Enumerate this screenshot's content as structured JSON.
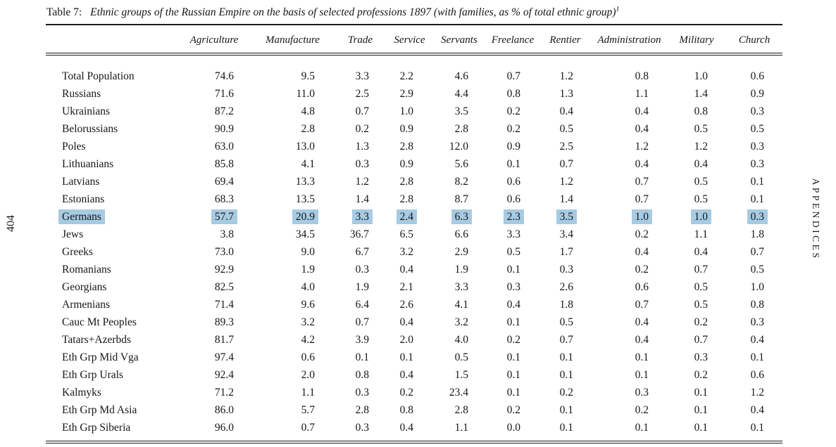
{
  "page": {
    "left_margin_text": "404",
    "right_margin_text": "APPENDICES"
  },
  "table": {
    "label": "Table 7:",
    "title": "Ethnic groups of the Russian Empire on the basis of selected professions 1897 (with families, as % of total ethnic group)",
    "footnote_marker": "1",
    "highlight_color": "#a6cbe3",
    "highlighted_row": "Germans",
    "columns": [
      "Agriculture",
      "Manufacture",
      "Trade",
      "Service",
      "Servants",
      "Freelance",
      "Rentier",
      "Administration",
      "Military",
      "Church"
    ],
    "rows": [
      {
        "group": "Total Population",
        "values": [
          "74.6",
          "9.5",
          "3.3",
          "2.2",
          "4.6",
          "0.7",
          "1.2",
          "0.8",
          "1.0",
          "0.6"
        ]
      },
      {
        "group": "Russians",
        "values": [
          "71.6",
          "11.0",
          "2.5",
          "2.9",
          "4.4",
          "0.8",
          "1.3",
          "1.1",
          "1.4",
          "0.9"
        ]
      },
      {
        "group": "Ukrainians",
        "values": [
          "87.2",
          "4.8",
          "0.7",
          "1.0",
          "3.5",
          "0.2",
          "0.4",
          "0.4",
          "0.8",
          "0.3"
        ]
      },
      {
        "group": "Belorussians",
        "values": [
          "90.9",
          "2.8",
          "0.2",
          "0.9",
          "2.8",
          "0.2",
          "0.5",
          "0.4",
          "0.5",
          "0.5"
        ]
      },
      {
        "group": "Poles",
        "values": [
          "63.0",
          "13.0",
          "1.3",
          "2.8",
          "12.0",
          "0.9",
          "2.5",
          "1.2",
          "1.2",
          "0.3"
        ]
      },
      {
        "group": "Lithuanians",
        "values": [
          "85.8",
          "4.1",
          "0.3",
          "0.9",
          "5.6",
          "0.1",
          "0.7",
          "0.4",
          "0.4",
          "0.3"
        ]
      },
      {
        "group": "Latvians",
        "values": [
          "69.4",
          "13.3",
          "1.2",
          "2.8",
          "8.2",
          "0.6",
          "1.2",
          "0.7",
          "0.5",
          "0.1"
        ]
      },
      {
        "group": "Estonians",
        "values": [
          "68.3",
          "13.5",
          "1.4",
          "2.8",
          "8.7",
          "0.6",
          "1.4",
          "0.7",
          "0.5",
          "0.1"
        ]
      },
      {
        "group": "Germans",
        "values": [
          "57.7",
          "20.9",
          "3.3",
          "2.4",
          "6.3",
          "2.3",
          "3.5",
          "1.0",
          "1.0",
          "0.3"
        ]
      },
      {
        "group": "Jews",
        "values": [
          "3.8",
          "34.5",
          "36.7",
          "6.5",
          "6.6",
          "3.3",
          "3.4",
          "0.2",
          "1.1",
          "1.8"
        ]
      },
      {
        "group": "Greeks",
        "values": [
          "73.0",
          "9.0",
          "6.7",
          "3.2",
          "2.9",
          "0.5",
          "1.7",
          "0.4",
          "0.4",
          "0.7"
        ]
      },
      {
        "group": "Romanians",
        "values": [
          "92.9",
          "1.9",
          "0.3",
          "0.4",
          "1.9",
          "0.1",
          "0.3",
          "0.2",
          "0.7",
          "0.5"
        ]
      },
      {
        "group": "Georgians",
        "values": [
          "82.5",
          "4.0",
          "1.9",
          "2.1",
          "3.3",
          "0.3",
          "2.6",
          "0.6",
          "0.5",
          "1.0"
        ]
      },
      {
        "group": "Armenians",
        "values": [
          "71.4",
          "9.6",
          "6.4",
          "2.6",
          "4.1",
          "0.4",
          "1.8",
          "0.7",
          "0.5",
          "0.8"
        ]
      },
      {
        "group": "Cauc Mt Peoples",
        "values": [
          "89.3",
          "3.2",
          "0.7",
          "0.4",
          "3.2",
          "0.1",
          "0.5",
          "0.4",
          "0.2",
          "0.3"
        ]
      },
      {
        "group": "Tatars+Azerbds",
        "values": [
          "81.7",
          "4.2",
          "3.9",
          "2.0",
          "4.0",
          "0.2",
          "0.7",
          "0.4",
          "0.7",
          "0.4"
        ]
      },
      {
        "group": "Eth Grp Mid Vga",
        "values": [
          "97.4",
          "0.6",
          "0.1",
          "0.1",
          "0.5",
          "0.1",
          "0.1",
          "0.1",
          "0.3",
          "0.1"
        ]
      },
      {
        "group": "Eth Grp Urals",
        "values": [
          "92.4",
          "2.0",
          "0.8",
          "0.4",
          "1.5",
          "0.1",
          "0.1",
          "0.1",
          "0.2",
          "0.6"
        ]
      },
      {
        "group": "Kalmyks",
        "values": [
          "71.2",
          "1.1",
          "0.3",
          "0.2",
          "23.4",
          "0.1",
          "0.2",
          "0.3",
          "0.1",
          "1.2"
        ]
      },
      {
        "group": "Eth Grp Md Asia",
        "values": [
          "86.0",
          "5.7",
          "2.8",
          "0.8",
          "2.8",
          "0.2",
          "0.1",
          "0.2",
          "0.1",
          "0.4"
        ]
      },
      {
        "group": "Eth Grp Siberia",
        "values": [
          "96.0",
          "0.7",
          "0.3",
          "0.4",
          "1.1",
          "0.0",
          "0.1",
          "0.1",
          "0.1",
          "0.1"
        ]
      }
    ]
  }
}
